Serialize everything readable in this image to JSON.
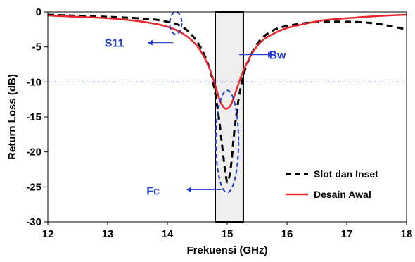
{
  "chart_data": {
    "type": "line",
    "xlabel": "Frekuensi (GHz)",
    "ylabel": "Return Loss (dB)",
    "xlim": [
      12,
      18
    ],
    "ylim": [
      -30,
      0
    ],
    "x_ticks": [
      12,
      13,
      14,
      15,
      16,
      17,
      18
    ],
    "y_ticks": [
      0,
      -5,
      -10,
      -15,
      -20,
      -25,
      -30
    ],
    "x_tick_labels": [
      "12",
      "13",
      "14",
      "15",
      "16",
      "17",
      "18"
    ],
    "y_tick_labels": [
      "0",
      "-5",
      "-10",
      "-15",
      "-20",
      "-25",
      "-30"
    ],
    "reference_line": {
      "y": -10,
      "style": "dashed",
      "color": "#4a4ad8"
    },
    "band": {
      "x_start": 14.8,
      "x_end": 15.27,
      "fill": "#eeeeee"
    },
    "series": [
      {
        "name": "Slot dan Inset",
        "style": "dashed",
        "color": "#000000",
        "points": [
          [
            12.0,
            -0.4
          ],
          [
            12.5,
            -0.55
          ],
          [
            13.0,
            -0.7
          ],
          [
            13.5,
            -0.9
          ],
          [
            13.8,
            -1.1
          ],
          [
            14.0,
            -1.4
          ],
          [
            14.2,
            -1.9
          ],
          [
            14.4,
            -3.2
          ],
          [
            14.6,
            -5.8
          ],
          [
            14.75,
            -9.5
          ],
          [
            14.85,
            -14.5
          ],
          [
            14.92,
            -19.5
          ],
          [
            14.97,
            -23.0
          ],
          [
            15.0,
            -24.3
          ],
          [
            15.03,
            -23.8
          ],
          [
            15.07,
            -21.5
          ],
          [
            15.12,
            -17.0
          ],
          [
            15.2,
            -12.0
          ],
          [
            15.3,
            -8.2
          ],
          [
            15.45,
            -5.3
          ],
          [
            15.6,
            -3.6
          ],
          [
            15.8,
            -2.5
          ],
          [
            16.0,
            -2.0
          ],
          [
            16.3,
            -1.6
          ],
          [
            16.6,
            -1.4
          ],
          [
            17.0,
            -1.4
          ],
          [
            17.3,
            -1.5
          ],
          [
            17.6,
            -1.8
          ],
          [
            18.0,
            -2.5
          ]
        ]
      },
      {
        "name": "Desain Awal",
        "style": "solid",
        "color": "#e8262b",
        "points": [
          [
            12.0,
            -0.5
          ],
          [
            12.5,
            -0.7
          ],
          [
            13.0,
            -0.9
          ],
          [
            13.5,
            -1.3
          ],
          [
            13.8,
            -1.7
          ],
          [
            14.0,
            -2.1
          ],
          [
            14.2,
            -2.8
          ],
          [
            14.4,
            -4.0
          ],
          [
            14.55,
            -5.5
          ],
          [
            14.7,
            -8.0
          ],
          [
            14.8,
            -10.5
          ],
          [
            14.88,
            -12.7
          ],
          [
            14.95,
            -13.7
          ],
          [
            15.0,
            -13.8
          ],
          [
            15.06,
            -13.3
          ],
          [
            15.12,
            -12.0
          ],
          [
            15.2,
            -10.0
          ],
          [
            15.3,
            -7.8
          ],
          [
            15.45,
            -5.5
          ],
          [
            15.6,
            -4.0
          ],
          [
            15.8,
            -3.0
          ],
          [
            16.0,
            -2.3
          ],
          [
            16.3,
            -1.7
          ],
          [
            16.6,
            -1.2
          ],
          [
            17.0,
            -0.9
          ],
          [
            17.5,
            -0.6
          ],
          [
            18.0,
            -0.4
          ]
        ]
      }
    ],
    "annotations": [
      {
        "label": "S11",
        "label_x": 12.95,
        "label_y": -4.4,
        "ellipse_cx": 14.14,
        "ellipse_cy": -1.6,
        "ellipse_rx": 0.1,
        "ellipse_ry": 1.6,
        "arrow_from": [
          14.1,
          -4.4
        ],
        "arrow_to": [
          13.68,
          -4.4
        ]
      },
      {
        "label": "Bw",
        "label_x": 15.7,
        "label_y": -6.1,
        "arrow_from": [
          15.2,
          -6.1
        ],
        "arrow_to": [
          15.75,
          -6.1
        ]
      },
      {
        "label": "Fc",
        "label_x": 13.65,
        "label_y": -25.5,
        "ellipse_cx": 15.0,
        "ellipse_cy": -18.5,
        "ellipse_rx": 0.19,
        "ellipse_ry": 7.3,
        "arrow_from": [
          14.9,
          -25.4
        ],
        "arrow_to": [
          14.33,
          -25.4
        ]
      }
    ]
  }
}
